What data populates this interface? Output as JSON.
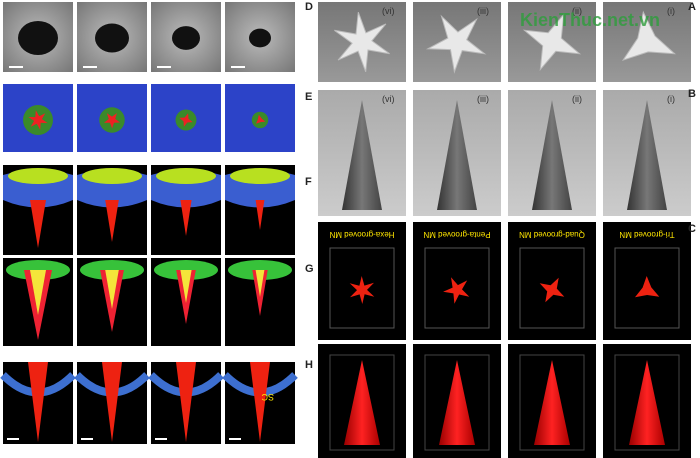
{
  "watermark": "KienThuc.net.vn",
  "left_panels": [
    {
      "letter": "D"
    },
    {
      "letter": "E"
    },
    {
      "letter": "F"
    },
    {
      "letter": "G"
    },
    {
      "letter": "H",
      "annotation": "SC"
    }
  ],
  "right_panels": [
    {
      "letter": "A",
      "labels": [
        "(vi)",
        "(iii)",
        "(ii)",
        "(i)"
      ]
    },
    {
      "letter": "B",
      "labels": [
        "(vi)",
        "(iii)",
        "(ii)",
        "(i)"
      ]
    },
    {
      "letter": "C",
      "labels": [
        "Hexa-grooved MN",
        "Penta-grooved MN",
        "Quad-grooved MN",
        "Tri-grooved MN"
      ]
    }
  ]
}
